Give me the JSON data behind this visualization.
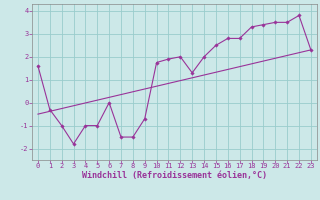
{
  "xlabel": "Windchill (Refroidissement éolien,°C)",
  "x_data": [
    0,
    1,
    2,
    3,
    4,
    5,
    6,
    7,
    8,
    9,
    10,
    11,
    12,
    13,
    14,
    15,
    16,
    17,
    18,
    19,
    20,
    21,
    22,
    23
  ],
  "y_data": [
    1.6,
    -0.3,
    -1.0,
    -1.8,
    -1.0,
    -1.0,
    0.0,
    -1.5,
    -1.5,
    -0.7,
    1.75,
    1.9,
    2.0,
    1.3,
    2.0,
    2.5,
    2.8,
    2.8,
    3.3,
    3.4,
    3.5,
    3.5,
    3.8,
    2.3
  ],
  "trend_x": [
    0,
    23
  ],
  "trend_y": [
    -0.5,
    2.3
  ],
  "line_color": "#993399",
  "bg_color": "#cce8e8",
  "grid_color": "#99cccc",
  "ylim": [
    -2.5,
    4.3
  ],
  "xlim": [
    -0.5,
    23.5
  ],
  "yticks": [
    -2,
    -1,
    0,
    1,
    2,
    3,
    4
  ],
  "xticks": [
    0,
    1,
    2,
    3,
    4,
    5,
    6,
    7,
    8,
    9,
    10,
    11,
    12,
    13,
    14,
    15,
    16,
    17,
    18,
    19,
    20,
    21,
    22,
    23
  ],
  "tick_fontsize": 5.0,
  "xlabel_fontsize": 6.0
}
